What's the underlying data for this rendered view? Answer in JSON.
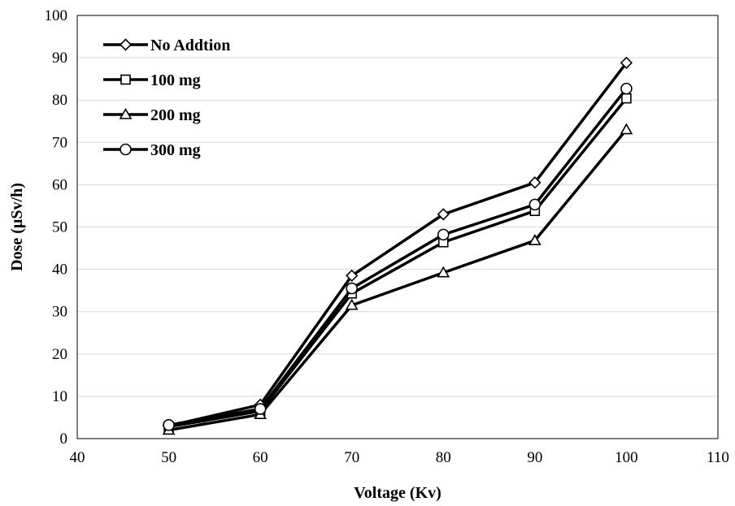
{
  "chart_data": {
    "type": "line",
    "title": "",
    "xlabel": "Voltage (Kv)",
    "ylabel": "Dose (µSv/h)",
    "xlim": [
      40,
      110
    ],
    "ylim": [
      0,
      100
    ],
    "x_ticks": [
      "40",
      "50",
      "60",
      "70",
      "80",
      "90",
      "100",
      "110"
    ],
    "y_ticks": [
      "0",
      "10",
      "20",
      "30",
      "40",
      "50",
      "60",
      "70",
      "80",
      "90",
      "100"
    ],
    "grid": "horizontal",
    "legend_position": "top-left",
    "x": [
      50,
      60,
      70,
      80,
      90,
      100
    ],
    "series": [
      {
        "name": "No Addtion",
        "marker": "diamond",
        "values": [
          3.0,
          8.0,
          38.5,
          53.0,
          60.5,
          88.8
        ]
      },
      {
        "name": "100 mg",
        "marker": "square",
        "values": [
          2.8,
          6.5,
          34.3,
          46.4,
          53.8,
          80.4
        ]
      },
      {
        "name": "200 mg",
        "marker": "triangle",
        "values": [
          2.0,
          5.7,
          31.5,
          39.2,
          46.8,
          73.0
        ]
      },
      {
        "name": "300 mg",
        "marker": "circle",
        "values": [
          3.2,
          7.0,
          35.5,
          48.2,
          55.3,
          82.7
        ]
      }
    ],
    "colors": {
      "line": "#000000",
      "grid": "#d9d9d9",
      "marker_fill": "#ffffff"
    }
  }
}
